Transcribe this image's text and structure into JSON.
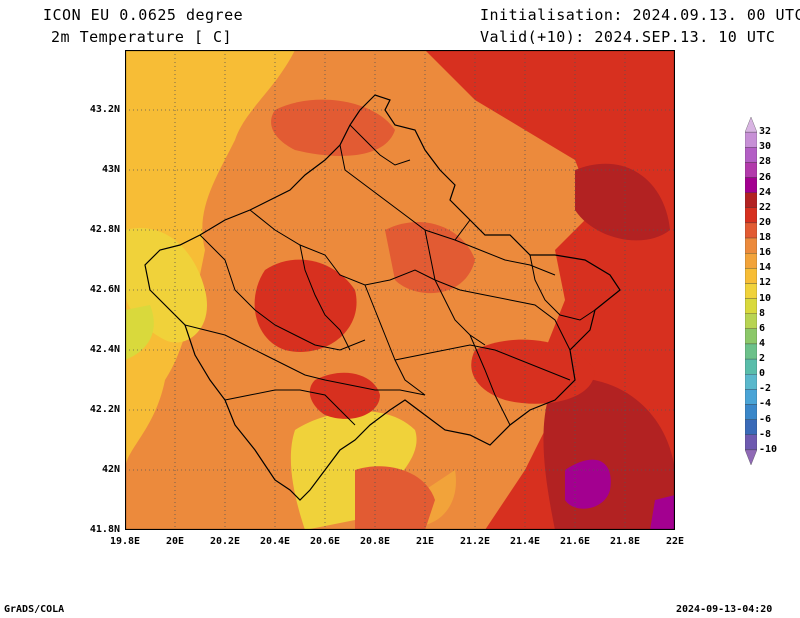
{
  "header": {
    "model": "ICON EU 0.0625 degree",
    "field": "2m Temperature [ C]",
    "init": "Initialisation: 2024.09.13. 00 UTC",
    "valid": "Valid(+10): 2024.SEP.13. 10 UTC"
  },
  "footer": {
    "credit": "GrADS/COLA",
    "timestamp": "2024-09-13-04:20"
  },
  "map": {
    "lon_range": [
      19.8,
      22.0
    ],
    "lat_range": [
      41.8,
      43.4
    ],
    "lat_ticks": [
      "43.2N",
      "43N",
      "42.8N",
      "42.6N",
      "42.4N",
      "42.2N",
      "42N",
      "41.8N"
    ],
    "lon_ticks": [
      "19.8E",
      "20E",
      "20.2E",
      "20.4E",
      "20.6E",
      "20.8E",
      "21E",
      "21.2E",
      "21.4E",
      "21.6E",
      "21.8E",
      "22E"
    ]
  },
  "colorbar": {
    "labels": [
      "32",
      "30",
      "28",
      "26",
      "24",
      "22",
      "20",
      "18",
      "16",
      "14",
      "12",
      "10",
      "8",
      "6",
      "4",
      "2",
      "0",
      "-2",
      "-4",
      "-6",
      "-8",
      "-10"
    ],
    "colors": [
      "#d8b4e2",
      "#c790d6",
      "#b35fc5",
      "#b23aab",
      "#a30090",
      "#b22222",
      "#d7301f",
      "#e25b33",
      "#ec8a3c",
      "#f2a33a",
      "#f7bd36",
      "#f0d23a",
      "#d9d93c",
      "#b8d452",
      "#8cc869",
      "#6cc18a",
      "#59bdaa",
      "#5ab8cc",
      "#4aa4d6",
      "#3a87c9",
      "#3a6ab8",
      "#6e5ab0",
      "#8f69b5"
    ]
  }
}
